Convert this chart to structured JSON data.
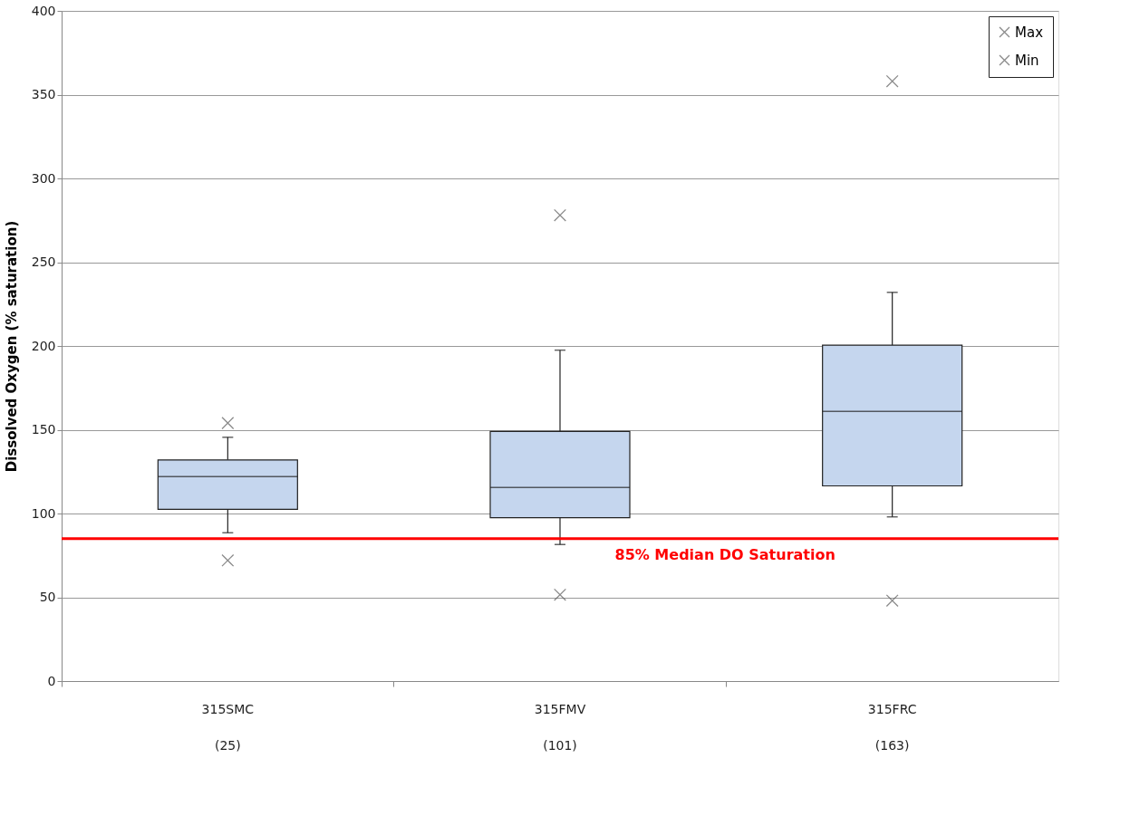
{
  "chart_data": {
    "type": "box",
    "ylabel": "Dissolved Oxygen (% saturation)",
    "categories": [
      "315SMC\n(25)",
      "315FMV\n(101)",
      "315FRC\n(163)"
    ],
    "ylim": [
      0,
      400
    ],
    "yticks": [
      0,
      50,
      100,
      150,
      200,
      250,
      300,
      350,
      400
    ],
    "grid": "y",
    "legend": "top right",
    "series": [
      {
        "color": "#c5d6ee",
        "boxes": [
          {
            "low": 88.5,
            "q1": 102.5,
            "median": 122,
            "q3": 132,
            "high": 145.5
          },
          {
            "low": 81.5,
            "q1": 97.5,
            "median": 115.5,
            "q3": 149,
            "high": 197.5
          },
          {
            "low": 98,
            "q1": 116.5,
            "median": 161,
            "q3": 200.5,
            "high": 232
          }
        ]
      },
      {
        "type": "scatter",
        "name": "Max",
        "color": "#595959",
        "marker": "cross",
        "x": [
          "315SMC\n(25)",
          "315FMV\n(101)",
          "315FRC\n(163)"
        ],
        "values": [
          154,
          278,
          358
        ]
      },
      {
        "type": "scatter",
        "name": "Min",
        "color": "#595959",
        "marker": "cross",
        "x": [
          "315SMC\n(25)",
          "315FMV\n(101)",
          "315FRC\n(163)"
        ],
        "values": [
          72,
          51.5,
          48
        ]
      }
    ],
    "ref_lines": [
      {
        "axis": "y",
        "value": 85,
        "label": "85% Median DO Saturation",
        "color": "#ff0000"
      }
    ]
  }
}
